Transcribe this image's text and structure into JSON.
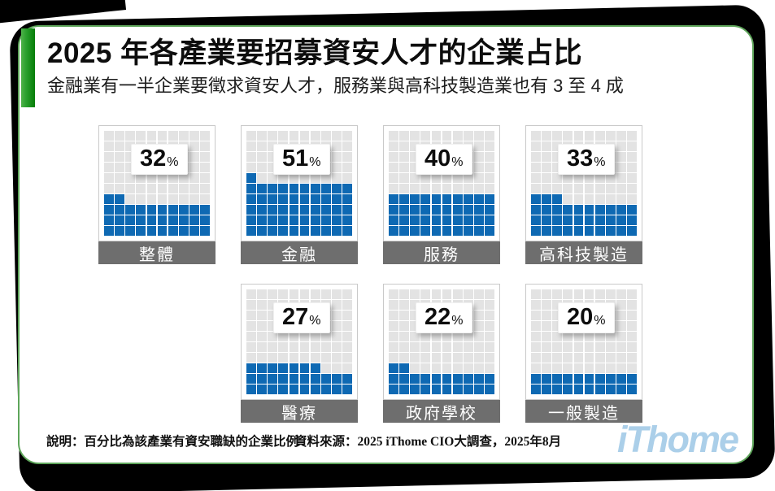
{
  "header": {
    "title": "2025 年各產業要招募資安人才的企業占比",
    "subtitle": "金融業有一半企業要徵求資安人才，服務業與高科技製造業也有 3 至 4 成"
  },
  "chart_data": {
    "type": "waffle",
    "title": "2025 年各產業要招募資安人才的企業占比",
    "subtitle": "金融業有一半企業要徵求資安人才，服務業與高科技製造業也有 3 至 4 成",
    "grid": {
      "rows": 10,
      "cols": 10,
      "cell_value": 1
    },
    "unit": "%",
    "categories": [
      "整體",
      "金融",
      "服務",
      "高科技製造",
      "醫療",
      "政府學校",
      "一般製造"
    ],
    "values": [
      32,
      51,
      40,
      33,
      27,
      22,
      20
    ],
    "row_layout": [
      4,
      3
    ],
    "colors": {
      "filled": "#0e69b3",
      "empty": "#e3e3e3",
      "label_bar": "#6e6e6e",
      "green_border": "#5ea55a",
      "logo": "#abcfe9"
    }
  },
  "footer": {
    "note": "說明：百分比為該產業有資安職缺的企業比例",
    "source": "資料來源：2025 iThome CIO大調查，2025年8月",
    "logo": "iThome"
  }
}
